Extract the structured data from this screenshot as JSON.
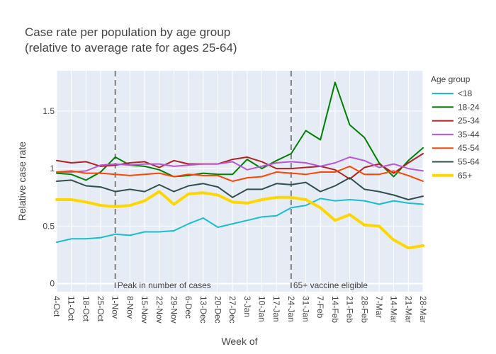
{
  "chart_data": {
    "type": "line",
    "title_line1": "Case rate per population by age group",
    "title_line2": "(relative to average rate for ages 25-64)",
    "xlabel": "Week of",
    "ylabel": "Relative case rate",
    "ylim": [
      -0.07,
      1.85
    ],
    "yticks": [
      0,
      0.5,
      1,
      1.5
    ],
    "ytick_labels": [
      "0",
      "0.5",
      "1",
      "1.5"
    ],
    "grid": true,
    "legend_title": "Age group",
    "legend_position": "right",
    "x": [
      "4-Oct",
      "11-Oct",
      "18-Oct",
      "25-Oct",
      "1-Nov",
      "8-Nov",
      "15-Nov",
      "22-Nov",
      "29-Nov",
      "6-Dec",
      "13-Dec",
      "20-Dec",
      "27-Dec",
      "3-Jan",
      "10-Jan",
      "17-Jan",
      "24-Jan",
      "31-Jan",
      "7-Feb",
      "14-Feb",
      "21-Feb",
      "28-Feb",
      "7-Mar",
      "14-Mar",
      "21-Mar",
      "28-Mar"
    ],
    "annotations": [
      {
        "x": "1-Nov",
        "text": "Peak in number of cases"
      },
      {
        "x": "24-Jan",
        "text": "65+ vaccine eligible"
      }
    ],
    "series": [
      {
        "name": "<18",
        "color": "#17becf",
        "width": 2,
        "values": [
          0.36,
          0.39,
          0.39,
          0.4,
          0.43,
          0.42,
          0.45,
          0.45,
          0.46,
          0.52,
          0.57,
          0.49,
          0.52,
          0.55,
          0.58,
          0.59,
          0.66,
          0.68,
          0.74,
          0.72,
          0.73,
          0.72,
          0.69,
          0.72,
          0.7,
          0.69
        ]
      },
      {
        "name": "18-24",
        "color": "#008000",
        "width": 2,
        "values": [
          0.96,
          0.95,
          0.9,
          0.97,
          1.1,
          1.03,
          1.02,
          0.99,
          0.93,
          0.94,
          0.96,
          0.95,
          0.95,
          1.08,
          1.0,
          1.07,
          1.13,
          1.33,
          1.25,
          1.75,
          1.38,
          1.27,
          1.05,
          0.93,
          1.07,
          1.18
        ]
      },
      {
        "name": "25-34",
        "color": "#b22222",
        "width": 2,
        "values": [
          1.07,
          1.05,
          1.06,
          1.02,
          1.03,
          1.05,
          1.06,
          1.01,
          1.07,
          1.04,
          1.04,
          1.04,
          1.08,
          1.1,
          1.06,
          1.0,
          1.0,
          1.01,
          1.02,
          0.99,
          0.91,
          1.01,
          1.04,
          0.96,
          1.05,
          1.13
        ]
      },
      {
        "name": "35-44",
        "color": "#ba55d3",
        "width": 2,
        "values": [
          0.97,
          0.97,
          0.98,
          1.03,
          1.04,
          1.03,
          1.04,
          1.04,
          1.02,
          1.03,
          1.04,
          1.04,
          1.06,
          0.99,
          1.02,
          1.05,
          1.06,
          1.05,
          1.02,
          1.05,
          1.1,
          1.07,
          1.01,
          1.04,
          1.0,
          0.98
        ]
      },
      {
        "name": "45-54",
        "color": "#ff4500",
        "width": 2,
        "values": [
          0.97,
          0.98,
          0.96,
          0.96,
          0.95,
          0.94,
          0.95,
          0.96,
          0.93,
          0.95,
          0.94,
          0.94,
          0.89,
          0.92,
          0.93,
          0.97,
          0.96,
          0.95,
          0.97,
          0.97,
          1.02,
          0.95,
          0.95,
          0.98,
          0.94,
          0.89
        ]
      },
      {
        "name": "55-64",
        "color": "#2f4f4f",
        "width": 2,
        "values": [
          0.89,
          0.9,
          0.85,
          0.84,
          0.8,
          0.82,
          0.8,
          0.86,
          0.8,
          0.85,
          0.87,
          0.84,
          0.75,
          0.82,
          0.82,
          0.87,
          0.86,
          0.88,
          0.8,
          0.85,
          0.92,
          0.82,
          0.8,
          0.77,
          0.73,
          0.76
        ]
      },
      {
        "name": "65+",
        "color": "#ffd700",
        "width": 4,
        "values": [
          0.73,
          0.73,
          0.71,
          0.68,
          0.67,
          0.68,
          0.72,
          0.8,
          0.69,
          0.78,
          0.79,
          0.77,
          0.71,
          0.7,
          0.73,
          0.75,
          0.75,
          0.73,
          0.66,
          0.55,
          0.6,
          0.51,
          0.5,
          0.38,
          0.31,
          0.33
        ]
      }
    ]
  }
}
